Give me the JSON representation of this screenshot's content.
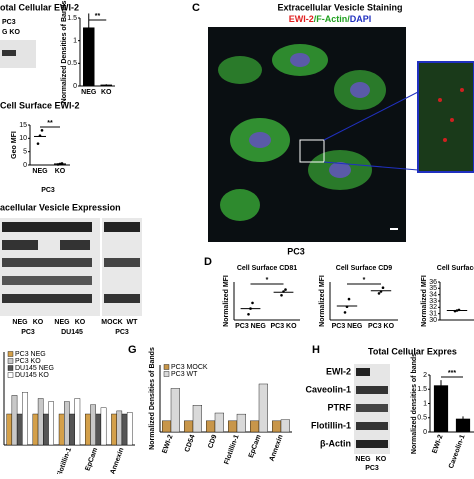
{
  "panels": {
    "a": {
      "title": "otal Cellular EWI-2",
      "cell_line": "PC3",
      "lanes": "G KO"
    },
    "b": {
      "title": "Cell Surface EWI-2",
      "cell_line": "PC3"
    },
    "e": {
      "title": "acellular Vesicle Expression",
      "lanes": [
        "NEG",
        "KO",
        "NEG",
        "KO",
        "MOCK",
        "WT"
      ],
      "cell_lines": [
        "PC3",
        "DU145",
        "PC3"
      ]
    },
    "c": {
      "letter": "C",
      "title": "Extracellular Vesicle  Staining",
      "stain": [
        "EWI-2",
        "/F-Actin/",
        "DAPI"
      ],
      "cell_line": "PC3"
    },
    "d": {
      "letter": "D"
    },
    "g": {
      "letter": "G"
    },
    "h": {
      "letter": "H",
      "title": "Total Cellular Expres",
      "bands": [
        "EWI-2",
        "Caveolin-1",
        "PTRF",
        "Flotillin-1",
        "β-Actin"
      ],
      "lanes": [
        "NEG",
        "KO"
      ],
      "cell_line": "PC3"
    }
  },
  "chart_data": [
    {
      "type": "bar",
      "categories": [
        "NEG",
        "KO"
      ],
      "values": [
        1.28,
        0.02
      ],
      "errors": [
        0.32,
        0.02
      ],
      "color": "#000000",
      "ylim": [
        0,
        1.5
      ],
      "yticks": [
        0,
        0.5,
        1,
        1.5
      ],
      "ylabel": "Normalized Densities of Bands",
      "annotation": "**"
    },
    {
      "type": "dot",
      "categories": [
        "NEG",
        "KO"
      ],
      "points": [
        [
          8,
          11,
          13
        ],
        [
          0.2,
          0.4,
          0.6
        ]
      ],
      "means": [
        10.7,
        0.4
      ],
      "ylim": [
        0,
        15
      ],
      "yticks": [
        0,
        5,
        10,
        15
      ],
      "ylabel": "Geo MFI",
      "annotation": "**"
    },
    {
      "type": "bar",
      "categories": [
        null,
        null,
        "Flotillin-1",
        "EpCam",
        "Annexin"
      ],
      "series": [
        {
          "name": "PC3 NEG",
          "color": "#d4a04a",
          "values": [
            1,
            1,
            1,
            1,
            1
          ]
        },
        {
          "name": "PC3 KO",
          "color": "#c8c8c8",
          "values": [
            1.6,
            1.5,
            1.4,
            1.3,
            1.1
          ]
        },
        {
          "name": "DU145 NEG",
          "color": "#555555",
          "values": [
            1,
            1,
            1,
            1,
            1
          ]
        },
        {
          "name": "DU145 KO",
          "color": "#ffffff",
          "values": [
            1.7,
            1.4,
            1.5,
            1.2,
            1.05
          ]
        }
      ],
      "ylim": [
        0,
        3
      ],
      "legend": "upper left"
    },
    {
      "type": "dot",
      "title": "Cell Surface CD81",
      "categories": [
        "PC3 NEG",
        "PC3 KO"
      ],
      "points": [
        [
          0.55,
          0.7,
          0.85
        ],
        [
          1.05,
          1.15,
          1.2
        ]
      ],
      "means": [
        0.7,
        1.13
      ],
      "ylim": [
        0.4,
        1.4
      ],
      "ylabel": "Normalized MFI",
      "annotation": "*"
    },
    {
      "type": "dot",
      "title": "Cell Surface CD9",
      "categories": [
        "PC3 NEG",
        "PC3 KO"
      ],
      "points": [
        [
          0.6,
          0.75,
          0.95
        ],
        [
          1.1,
          1.15,
          1.25
        ]
      ],
      "means": [
        0.77,
        1.17
      ],
      "ylim": [
        0.4,
        1.4
      ],
      "ylabel": "Normalized MFI",
      "annotation": "*"
    },
    {
      "type": "dot",
      "title": "Cell Surface",
      "categories": [
        null
      ],
      "points": [
        [
          31.4,
          31.5,
          31.6
        ]
      ],
      "means": [
        31.5
      ],
      "ylim": [
        30,
        36
      ],
      "yticks": [
        30,
        31,
        32,
        33,
        34,
        35,
        36
      ],
      "ylabel": "Normalized MFI"
    },
    {
      "type": "bar",
      "categories": [
        "EWI-2",
        "CD54",
        "CD9",
        "Flotillin-1",
        "EpCam",
        "Annexin"
      ],
      "series": [
        {
          "name": "PC3 MOCK",
          "color": "#c8964a",
          "values": [
            1,
            1,
            1,
            1,
            1,
            1
          ]
        },
        {
          "name": "PC3 WT",
          "color": "#d9d9d9",
          "values": [
            3.9,
            2.4,
            1.7,
            1.6,
            4.3,
            1.1
          ]
        }
      ],
      "ylim": [
        0,
        6
      ],
      "ylabel": "Normalized Densities of Bands",
      "legend": "upper left"
    },
    {
      "type": "bar",
      "categories": [
        "EWI-2",
        "Caveolin-1"
      ],
      "values": [
        1.62,
        0.45
      ],
      "errors": [
        0.2,
        0.1
      ],
      "color": "#000000",
      "ylim": [
        0,
        2
      ],
      "yticks": [
        0,
        0.5,
        1,
        1.5,
        2
      ],
      "ylabel": "Normalized densities of bands",
      "annotation": "***"
    }
  ]
}
